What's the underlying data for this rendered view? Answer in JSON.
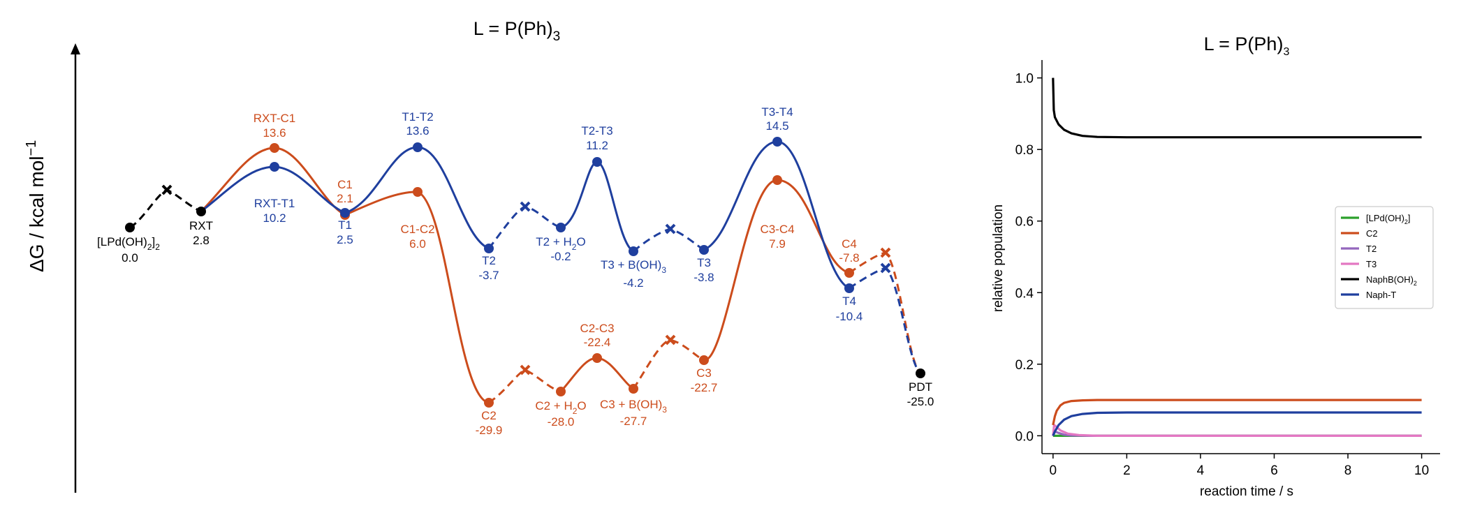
{
  "left_panel": {
    "title_main": "L = P(Ph)",
    "title_sub": "3",
    "y_label_main": "ΔG / kcal mol",
    "y_label_sup": "−1"
  },
  "right_panel": {
    "title_main": "L = P(Ph)",
    "title_sub": "3",
    "xlabel": "reaction time / s",
    "ylabel": "relative population",
    "xticks": [
      "0",
      "2",
      "4",
      "6",
      "8",
      "10"
    ],
    "yticks": [
      "0.0",
      "0.2",
      "0.4",
      "0.6",
      "0.8",
      "1.0"
    ]
  },
  "legend": [
    {
      "main": "[LPd(OH)",
      "sub": "2",
      "tail": "]",
      "color": "#2ca02c"
    },
    {
      "main": "C2",
      "sub": "",
      "tail": "",
      "color": "#cc4c1c"
    },
    {
      "main": "T2",
      "sub": "",
      "tail": "",
      "color": "#9467bd"
    },
    {
      "main": "T3",
      "sub": "",
      "tail": "",
      "color": "#e377c2"
    },
    {
      "main": "NaphB(OH)",
      "sub": "2",
      "tail": "",
      "color": "#000000"
    },
    {
      "main": "Naph-T",
      "sub": "",
      "tail": "",
      "color": "#1f3f9e"
    }
  ],
  "colors": {
    "orange": "#cc4c1c",
    "blue": "#1f3f9e",
    "black": "#000000"
  },
  "chart_data": [
    {
      "type": "line",
      "title": "L = P(Ph)3",
      "ylabel": "ΔG / kcal mol−1",
      "states": [
        {
          "name": "[LPd(OH)2]2",
          "dG": "0.0",
          "color": "black"
        },
        {
          "name": "RXT",
          "dG": "2.8",
          "color": "black"
        },
        {
          "name": "RXT-T1",
          "dG": "10.2",
          "color": "blue"
        },
        {
          "name": "T1",
          "dG": "2.5",
          "color": "blue"
        },
        {
          "name": "T1-T2",
          "dG": "13.6",
          "color": "blue"
        },
        {
          "name": "T2",
          "dG": "-3.7",
          "color": "blue"
        },
        {
          "name": "T2 + H2O",
          "dG": "-0.2",
          "color": "blue"
        },
        {
          "name": "T2-T3",
          "dG": "11.2",
          "color": "blue"
        },
        {
          "name": "T3 + B(OH)3",
          "dG": "-4.2",
          "color": "blue"
        },
        {
          "name": "T3",
          "dG": "-3.8",
          "color": "blue"
        },
        {
          "name": "T3-T4",
          "dG": "14.5",
          "color": "blue"
        },
        {
          "name": "T4",
          "dG": "-10.4",
          "color": "blue"
        },
        {
          "name": "RXT-C1",
          "dG": "13.6",
          "color": "orange"
        },
        {
          "name": "C1",
          "dG": "2.1",
          "color": "orange"
        },
        {
          "name": "C1-C2",
          "dG": "6.0",
          "color": "orange"
        },
        {
          "name": "C2",
          "dG": "-29.9",
          "color": "orange"
        },
        {
          "name": "C2 + H2O",
          "dG": "-28.0",
          "color": "orange"
        },
        {
          "name": "C2-C3",
          "dG": "-22.4",
          "color": "orange"
        },
        {
          "name": "C3 + B(OH)3",
          "dG": "-27.7",
          "color": "orange"
        },
        {
          "name": "C3",
          "dG": "-22.7",
          "color": "orange"
        },
        {
          "name": "C3-C4",
          "dG": "7.9",
          "color": "orange"
        },
        {
          "name": "C4",
          "dG": "-7.8",
          "color": "orange"
        },
        {
          "name": "PDT",
          "dG": "-25.0",
          "color": "black"
        }
      ]
    },
    {
      "type": "line",
      "title": "L = P(Ph)3",
      "xlabel": "reaction time / s",
      "ylabel": "relative population",
      "xlim": [
        -0.3,
        10.5
      ],
      "ylim": [
        -0.05,
        1.05
      ],
      "series": [
        {
          "name": "[LPd(OH)2]",
          "x": [
            0,
            10
          ],
          "y": [
            0.0,
            0.0
          ]
        },
        {
          "name": "C2",
          "x": [
            0,
            0.05,
            0.1,
            0.2,
            0.3,
            0.5,
            0.8,
            1.2,
            2,
            10
          ],
          "y": [
            0.03,
            0.055,
            0.07,
            0.085,
            0.092,
            0.097,
            0.099,
            0.1,
            0.1,
            0.1
          ]
        },
        {
          "name": "T2",
          "x": [
            0,
            0.05,
            0.15,
            0.3,
            0.5,
            1,
            10
          ],
          "y": [
            0.0,
            0.012,
            0.008,
            0.003,
            0.001,
            0.0,
            0.0
          ]
        },
        {
          "name": "T3",
          "x": [
            0,
            0.03,
            0.08,
            0.2,
            0.4,
            0.7,
            1.2,
            10
          ],
          "y": [
            0.0,
            0.03,
            0.026,
            0.015,
            0.006,
            0.002,
            0.0,
            0.0
          ]
        },
        {
          "name": "NaphB(OH)2",
          "x": [
            0,
            0.02,
            0.05,
            0.15,
            0.3,
            0.5,
            0.8,
            1.2,
            2,
            10
          ],
          "y": [
            1.0,
            0.91,
            0.89,
            0.87,
            0.855,
            0.845,
            0.838,
            0.835,
            0.834,
            0.834
          ]
        },
        {
          "name": "Naph-T",
          "x": [
            0,
            0.05,
            0.15,
            0.3,
            0.5,
            0.8,
            1.2,
            2,
            10
          ],
          "y": [
            0.0,
            0.012,
            0.03,
            0.045,
            0.055,
            0.061,
            0.064,
            0.065,
            0.065
          ]
        }
      ]
    }
  ]
}
